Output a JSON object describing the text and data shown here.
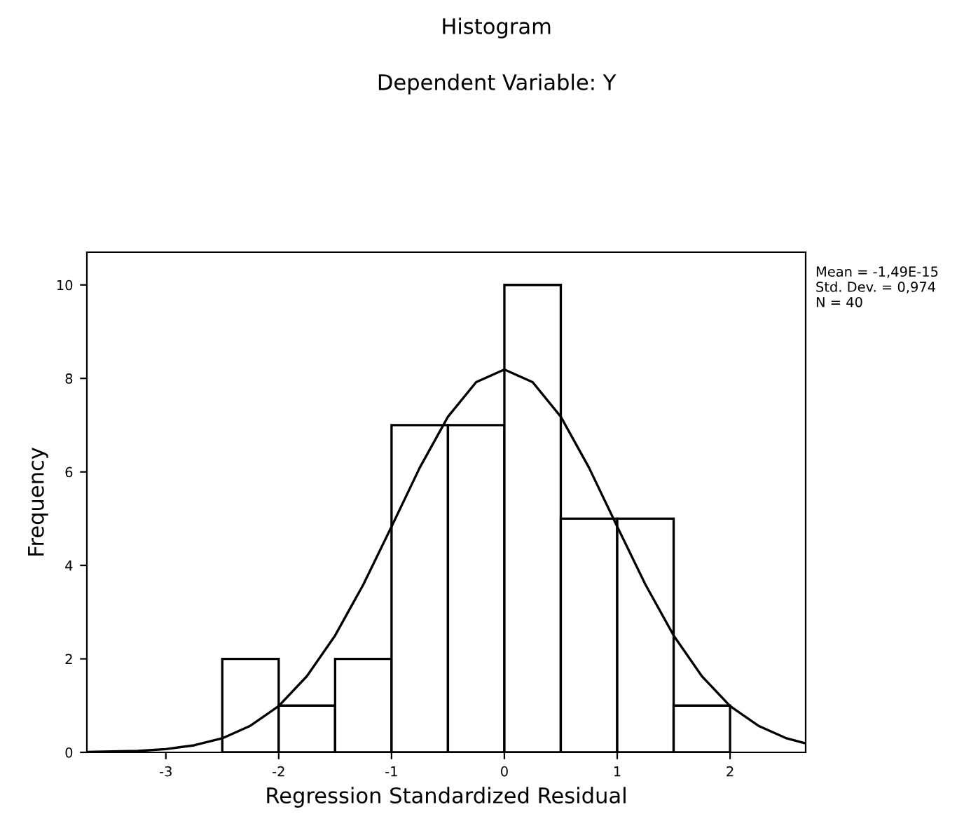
{
  "chart_data": {
    "type": "histogram",
    "title": "Histogram",
    "subtitle": "Dependent Variable: Y",
    "xlabel": "Regression Standardized Residual",
    "ylabel": "Frequency",
    "bins": [
      -2.5,
      -2.0,
      -1.5,
      -1.0,
      -0.5,
      0.0,
      0.5,
      1.0,
      1.5,
      2.0
    ],
    "values": [
      2,
      1,
      2,
      7,
      7,
      10,
      5,
      5,
      1
    ],
    "color": "#ffffff",
    "series": [
      {
        "type": "line",
        "color": "#000000",
        "x": [
          -3.7,
          -3.25,
          -3.0,
          -2.75,
          -2.5,
          -2.25,
          -2.0,
          -1.75,
          -1.5,
          -1.25,
          -1.0,
          -0.75,
          -0.5,
          -0.25,
          0.0,
          0.25,
          0.5,
          0.75,
          1.0,
          1.25,
          1.5,
          1.75,
          2.0,
          2.25,
          2.5,
          2.67
        ],
        "values": [
          0.01,
          0.03,
          0.07,
          0.15,
          0.3,
          0.57,
          0.99,
          1.63,
          2.5,
          3.59,
          4.83,
          6.09,
          7.18,
          7.92,
          8.19,
          7.92,
          7.18,
          6.09,
          4.83,
          3.59,
          2.5,
          1.63,
          0.99,
          0.57,
          0.3,
          0.19
        ]
      }
    ],
    "xlim": [
      -3.7,
      2.67
    ],
    "ylim": [
      0,
      10.7
    ],
    "xticks": [
      -3,
      -2,
      -1,
      0,
      1,
      2
    ],
    "yticks": [
      0,
      2,
      4,
      6,
      8,
      10
    ],
    "grid": false,
    "annotations": [
      "Mean = -1,49E-15\nStd. Dev. = 0,974\nN = 40"
    ]
  }
}
